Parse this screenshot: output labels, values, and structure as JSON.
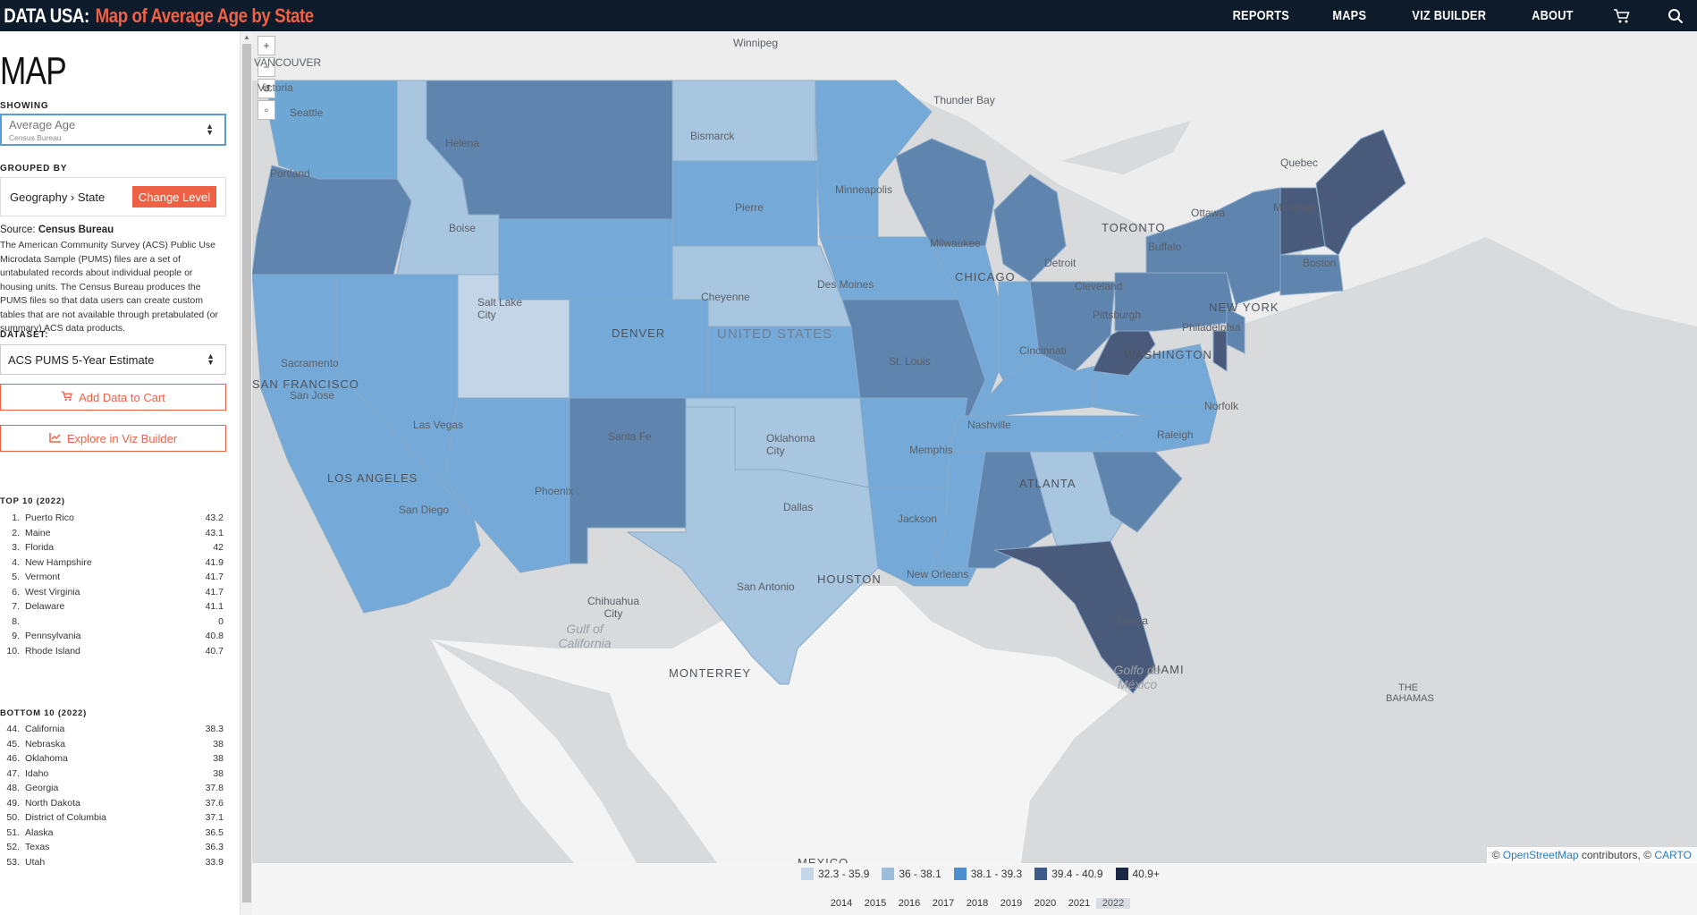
{
  "brand": {
    "name": "DATA USA:",
    "page_title": "Map of Average Age by State"
  },
  "nav": {
    "items": [
      "REPORTS",
      "MAPS",
      "VIZ BUILDER",
      "ABOUT"
    ],
    "cart_icon": "cart-icon",
    "search_icon": "search-icon"
  },
  "sidebar": {
    "title": "MAP",
    "showing_label": "SHOWING",
    "showing_value": "Average Age",
    "showing_source": "Census Bureau",
    "grouped_label": "GROUPED BY",
    "grouped_value": "Geography › State",
    "change_level": "Change Level",
    "source_prefix": "Source:",
    "source_name": "Census Bureau",
    "description": "The American Community Survey (ACS) Public Use Microdata Sample (PUMS) files are a set of untabulated records about individual people or housing units. The Census Bureau produces the PUMS files so that data users can create custom tables that are not available through pretabulated (or summary) ACS data products.",
    "dataset_label": "DATASET:",
    "dataset_value": "ACS PUMS 5-Year Estimate",
    "add_cart": "Add Data to Cart",
    "viz_builder": "Explore in Viz Builder",
    "top_title": "TOP 10 (2022)",
    "top": [
      {
        "rank": "1.",
        "name": "Puerto Rico",
        "value": "43.2"
      },
      {
        "rank": "2.",
        "name": "Maine",
        "value": "43.1"
      },
      {
        "rank": "3.",
        "name": "Florida",
        "value": "42"
      },
      {
        "rank": "4.",
        "name": "New Hampshire",
        "value": "41.9"
      },
      {
        "rank": "5.",
        "name": "Vermont",
        "value": "41.7"
      },
      {
        "rank": "6.",
        "name": "West Virginia",
        "value": "41.7"
      },
      {
        "rank": "7.",
        "name": "Delaware",
        "value": "41.1"
      },
      {
        "rank": "8.",
        "name": "",
        "value": "0"
      },
      {
        "rank": "9.",
        "name": "Pennsylvania",
        "value": "40.8"
      },
      {
        "rank": "10.",
        "name": "Rhode Island",
        "value": "40.7"
      }
    ],
    "bottom_title": "BOTTOM 10 (2022)",
    "bottom": [
      {
        "rank": "44.",
        "name": "California",
        "value": "38.3"
      },
      {
        "rank": "45.",
        "name": "Nebraska",
        "value": "38"
      },
      {
        "rank": "46.",
        "name": "Oklahoma",
        "value": "38"
      },
      {
        "rank": "47.",
        "name": "Idaho",
        "value": "38"
      },
      {
        "rank": "48.",
        "name": "Georgia",
        "value": "37.8"
      },
      {
        "rank": "49.",
        "name": "North Dakota",
        "value": "37.6"
      },
      {
        "rank": "50.",
        "name": "District of Columbia",
        "value": "37.1"
      },
      {
        "rank": "51.",
        "name": "Alaska",
        "value": "36.5"
      },
      {
        "rank": "52.",
        "name": "Texas",
        "value": "36.3"
      },
      {
        "rank": "53.",
        "name": "Utah",
        "value": "33.9"
      }
    ]
  },
  "map": {
    "labels": [
      "Winnipeg",
      "VANCOUVER",
      "Victoria",
      "Seattle",
      "Portland",
      "Helena",
      "Boise",
      "Bismarck",
      "Pierre",
      "Minneapolis",
      "Thunder Bay",
      "Quebec",
      "Montreal",
      "Ottawa",
      "TORONTO",
      "Buffalo",
      "Boston",
      "NEW YORK",
      "Philadelphia",
      "WASHINGTON",
      "Pittsburgh",
      "Cleveland",
      "Detroit",
      "Milwaukee",
      "CHICAGO",
      "Des Moines",
      "Cheyenne",
      "Salt Lake City",
      "DENVER",
      "UNITED STATES",
      "St. Louis",
      "Cincinnati",
      "Sacramento",
      "SAN FRANCISCO",
      "San Jose",
      "Las Vegas",
      "Santa Fe",
      "Oklahoma City",
      "Nashville",
      "Norfolk",
      "Raleigh",
      "Memphis",
      "ATLANTA",
      "LOS ANGELES",
      "San Diego",
      "Phoenix",
      "Dallas",
      "Jackson",
      "New Orleans",
      "San Antonio",
      "HOUSTON",
      "Tampa",
      "MIAMI",
      "Chihuahua City",
      "MONTERREY",
      "Gulf of California",
      "Golfo de México",
      "THE BAHAMAS",
      "MEXICO"
    ],
    "attribution_prefix": "©",
    "attribution_osm": "OpenStreetMap",
    "attribution_mid": "contributors, ©",
    "attribution_carto": "CARTO",
    "colors": {
      "c1": "#c3d5e6",
      "c2": "#a9c6e0",
      "c3": "#75aad8",
      "c4": "#5f87b0",
      "c5": "#4a5a7b"
    }
  },
  "legend": [
    {
      "label": "32.3 - 35.9",
      "color": "#c3d5e6"
    },
    {
      "label": "36 - 38.1",
      "color": "#9cbcdc"
    },
    {
      "label": "38.1 - 39.3",
      "color": "#4d8fce"
    },
    {
      "label": "39.4 - 40.9",
      "color": "#3c5a8a"
    },
    {
      "label": "40.9+",
      "color": "#1a2744"
    }
  ],
  "years": [
    "2014",
    "2015",
    "2016",
    "2017",
    "2018",
    "2019",
    "2020",
    "2021",
    "2022"
  ],
  "active_year": "2022"
}
